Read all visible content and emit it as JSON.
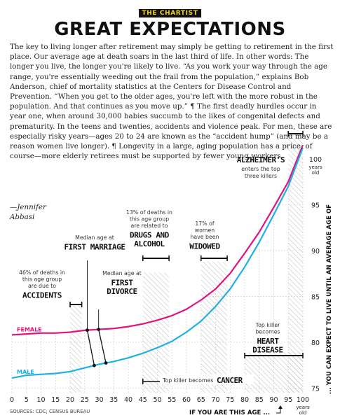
{
  "header": {
    "badge": "THE CHARTIST",
    "title": "GREAT EXPECTATIONS"
  },
  "article": {
    "body": "The key to living longer after retirement may simply be getting to retirement in the first place. Our average age at death soars in the last third of life. In other words: The longer you live, the longer you're likely to live. “As you work your way through the age range, you're essentially weeding out the frail from the population,” explains Bob Anderson, chief of mortality statistics at the Centers for Disease Control and Prevention. “When you get to the older ages, you're left with the more robust in the population. And that continues as you move up.” ¶ The first deadly hurdles occur in year one, when around 30,000 babies succumb to the likes of congenital defects and prematurity. In the teens and twenties, accidents and violence peak. For men, these are especially risky years—ages 20 to 24 are known as the “accident hump” (and may be a reason women live longer). ¶ Longevity in a large, aging population has a price, of course—more elderly retirees must be supported by fewer young workers.",
    "byline": "—Jennifer\nAbbasi"
  },
  "colors": {
    "female": "#e0147c",
    "male": "#1fb0e6",
    "badge_bg": "#111111",
    "badge_text": "#f5d21a"
  },
  "chart_data": {
    "type": "line",
    "x": [
      0,
      5,
      10,
      15,
      20,
      25,
      30,
      35,
      40,
      45,
      50,
      55,
      60,
      65,
      70,
      75,
      80,
      85,
      90,
      95,
      100
    ],
    "series": [
      {
        "name": "FEMALE",
        "values": [
          80.8,
          80.9,
          81.0,
          81.0,
          81.1,
          81.3,
          81.4,
          81.5,
          81.7,
          82.0,
          82.4,
          82.9,
          83.6,
          84.6,
          85.8,
          87.5,
          89.7,
          92.0,
          94.7,
          97.5,
          101.5
        ]
      },
      {
        "name": "MALE",
        "values": [
          76.1,
          76.4,
          76.5,
          76.6,
          76.8,
          77.2,
          77.6,
          77.9,
          78.3,
          78.8,
          79.4,
          80.1,
          81.1,
          82.3,
          83.9,
          85.8,
          88.2,
          90.9,
          93.9,
          97.0,
          101.2
        ]
      }
    ],
    "xticks": [
      "0",
      "5",
      "10",
      "15",
      "20",
      "25",
      "30",
      "35",
      "40",
      "45",
      "50",
      "55",
      "60",
      "65",
      "70",
      "75",
      "80",
      "85",
      "90",
      "95",
      "100"
    ],
    "yticks": [
      "75",
      "80",
      "85",
      "90",
      "95",
      "100"
    ],
    "xlim": [
      0,
      100
    ],
    "ylim": [
      74.5,
      102.5
    ],
    "xlabel": "IF YOU ARE THIS AGE ...",
    "xlabel_unit": "years old",
    "ylabel": "... YOU CAN EXPECT TO LIVE UNTIL AN AVERAGE AGE OF",
    "ylabel_unit": "years old",
    "source": "SOURCES: CDC; CENSUS BUREAU",
    "annotations": [
      {
        "id": "accidents",
        "lines_small": [
          "46% of deaths in",
          "this age group",
          "are due to"
        ],
        "lines_big": [
          "ACCIDENTS"
        ],
        "x_range": [
          20,
          24
        ]
      },
      {
        "id": "first_marriage",
        "lines_small": [
          "Median age at"
        ],
        "lines_big": [
          "FIRST MARRIAGE"
        ],
        "x_female": 25.9,
        "x_male": 28.3
      },
      {
        "id": "first_divorce",
        "lines_small": [
          "Median age at"
        ],
        "lines_big": [
          "FIRST",
          "DIVORCE"
        ],
        "x_female": 29.8,
        "x_male": 32.3
      },
      {
        "id": "drugs_alcohol",
        "lines_small": [
          "13% of deaths in",
          "this age group",
          "are related to"
        ],
        "lines_big": [
          "DRUGS AND",
          "ALCOHOL"
        ],
        "x_range": [
          45,
          54
        ]
      },
      {
        "id": "widowed",
        "lines_small": [
          "17% of",
          "women",
          "have been"
        ],
        "lines_big": [
          "WIDOWED"
        ],
        "x_range": [
          65,
          74
        ]
      },
      {
        "id": "alzheimers",
        "lines_big": [
          "ALZHEIMER'S"
        ],
        "lines_small": [
          "enters the top",
          "three killers"
        ],
        "x_range": [
          95,
          100
        ]
      },
      {
        "id": "heart_disease",
        "lines_small": [
          "Top killer",
          "becomes"
        ],
        "lines_big": [
          "HEART",
          "DISEASE"
        ],
        "x_range": [
          80,
          100
        ]
      },
      {
        "id": "cancer",
        "small": "Top killer becomes",
        "big": "CANCER",
        "x_range": [
          45,
          79
        ]
      }
    ]
  }
}
